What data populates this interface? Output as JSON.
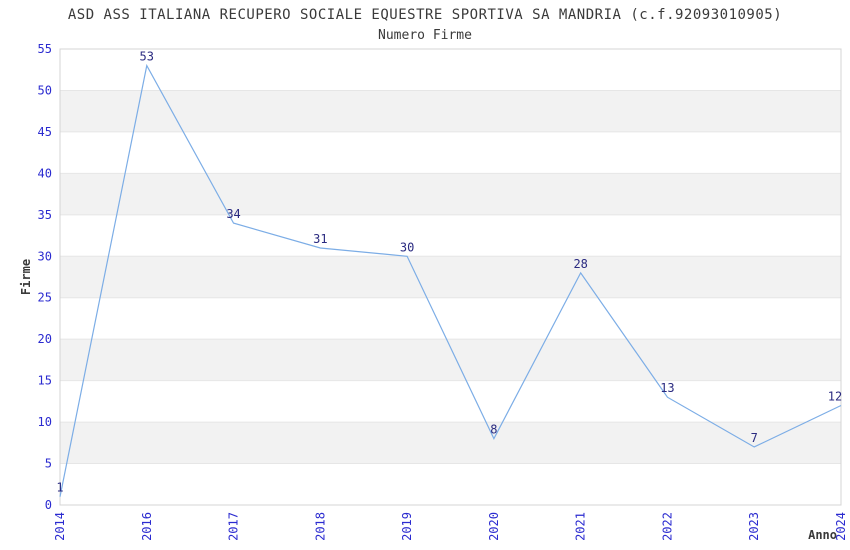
{
  "chart_data": {
    "type": "line",
    "title": "ASD ASS ITALIANA RECUPERO SOCIALE EQUESTRE SPORTIVA SA MANDRIA (c.f.92093010905)",
    "subtitle": "Numero Firme",
    "xlabel": "Anno",
    "ylabel": "Firme",
    "categories": [
      "2014",
      "2016",
      "2017",
      "2018",
      "2019",
      "2020",
      "2021",
      "2022",
      "2023",
      "2024"
    ],
    "values": [
      1,
      53,
      34,
      31,
      30,
      8,
      28,
      13,
      7,
      12
    ],
    "ylim": [
      0,
      55
    ],
    "ytick_step": 5,
    "grid": "horizontal-bands-alternating",
    "legend": "none",
    "x_tick_rotation": -90,
    "colors": {
      "line": "#7cade6",
      "tick_label": "#2b2bd0",
      "point_label": "#2a2a80",
      "band_gray": "#f2f2f2",
      "gridline": "#e6e6e6",
      "plot_border": "#d4d4d4",
      "text": "#3a3a3a",
      "background": "#ffffff"
    }
  }
}
